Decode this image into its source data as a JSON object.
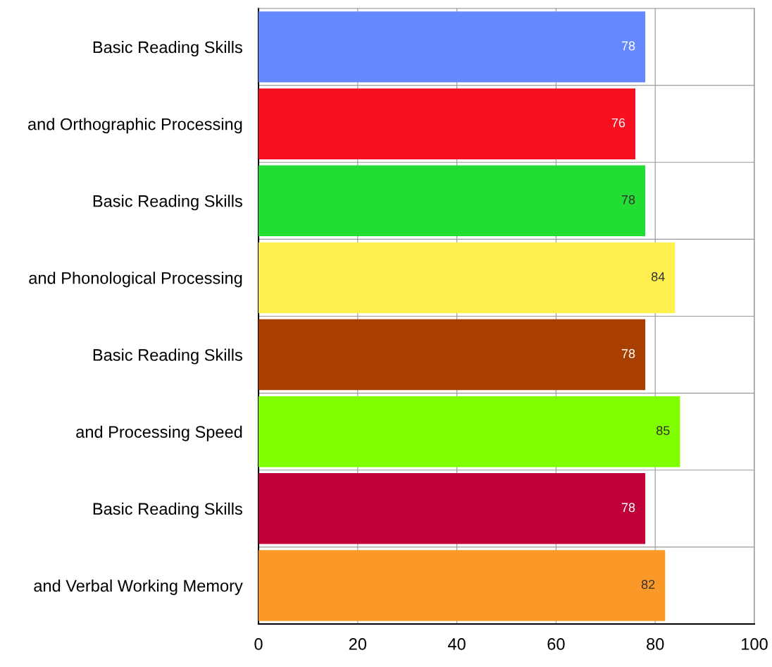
{
  "chart_data": {
    "type": "bar",
    "orientation": "horizontal",
    "categories": [
      "Basic Reading Skills",
      "and Orthographic Processing",
      "Basic Reading Skills",
      "and Phonological Processing",
      "Basic Reading Skills",
      "and Processing Speed",
      "Basic Reading Skills",
      "and Verbal Working Memory"
    ],
    "values": [
      78,
      76,
      78,
      84,
      78,
      85,
      78,
      82
    ],
    "colors": [
      "#6688ff",
      "#f80f1f",
      "#22dd33",
      "#fff050",
      "#a83e00",
      "#80ff00",
      "#c00038",
      "#fa9828"
    ],
    "xlim": [
      0,
      100
    ],
    "xticks": [
      0,
      20,
      40,
      60,
      80,
      100
    ],
    "grid": true,
    "data_labels": true
  }
}
